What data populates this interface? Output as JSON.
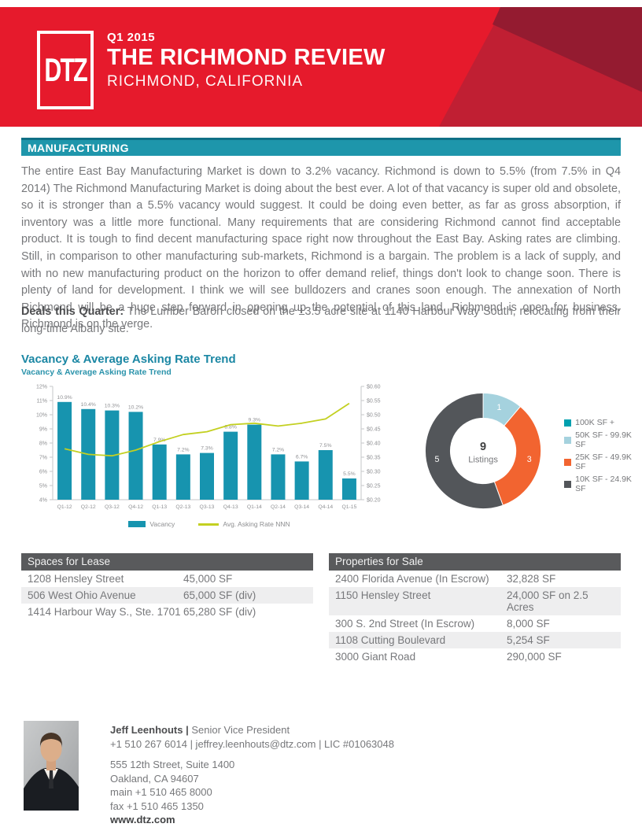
{
  "header": {
    "logo_text": "DTZ",
    "quarter": "Q1 2015",
    "title": "THE RICHMOND REVIEW",
    "subtitle": "RICHMOND, CALIFORNIA",
    "colors": {
      "red": "#e61a2c",
      "red_mid": "#c01f33",
      "red_dark": "#941b30"
    }
  },
  "section": {
    "label": "MANUFACTURING",
    "color": "#1e96ab"
  },
  "body": {
    "paragraph": "The entire East Bay Manufacturing Market is down to 3.2% vacancy. Richmond is down to 5.5% (from 7.5% in Q4 2014) The Richmond Manufacturing Market is doing about the best ever. A lot of that vacancy is super old and obsolete, so it is stronger than a 5.5% vacancy would suggest. It could be doing even better, as far as gross absorption, if inventory was a little more functional. Many requirements that are considering Richmond cannot find acceptable product. It is tough to find decent manufacturing space right now throughout the East Bay. Asking rates are climbing. Still, in comparison to other manufacturing sub-markets, Richmond is a bargain. The problem is a lack of supply, and with no new manufacturing product on the horizon to offer demand relief, things don't look to change soon. There is plenty of land for development. I think we will see bulldozers and cranes soon enough. The annexation of North Richmond will be a huge step forward in opening up the potential of this land. Richmond is open for business. Richmond is on the verge.",
    "deals_label": "Deals this Quarter:",
    "deals_text": "The Lumber Baron closed on the ±3.5 acre site at 1140 Harbour Way South, relocating from their long-time Albany site."
  },
  "chart_data": [
    {
      "type": "bar",
      "title": "Vacancy & Average Asking Rate Trend",
      "subtitle": "Vacancy & Average Asking Rate Trend",
      "categories": [
        "Q1-12",
        "Q2-12",
        "Q3-12",
        "Q4-12",
        "Q1-13",
        "Q2-13",
        "Q3-13",
        "Q4-13",
        "Q1-14",
        "Q2-14",
        "Q3-14",
        "Q4-14",
        "Q1-15"
      ],
      "series": [
        {
          "name": "Vacancy",
          "render": "bar",
          "color": "#1794af",
          "unit": "%",
          "values": [
            10.9,
            10.4,
            10.3,
            10.2,
            7.9,
            7.2,
            7.3,
            8.8,
            9.3,
            7.2,
            6.7,
            7.5,
            5.5
          ],
          "labels": [
            "10.9%",
            "10.4%",
            "10.3%",
            "10.2%",
            "7.9%",
            "7.2%",
            "7.3%",
            "8.8%",
            "9.3%",
            "7.2%",
            "6.7%",
            "7.5%",
            "5.5%"
          ]
        },
        {
          "name": "Avg. Asking Rate NNN",
          "render": "line",
          "color": "#c3d021",
          "unit": "$/SF",
          "values": [
            0.38,
            0.36,
            0.355,
            0.375,
            0.405,
            0.43,
            0.44,
            0.465,
            0.47,
            0.46,
            0.47,
            0.485,
            0.54
          ]
        }
      ],
      "y_left": {
        "min": 4,
        "max": 12,
        "step": 1,
        "tick_labels": [
          "12%",
          "11%",
          "10%",
          "9%",
          "8%",
          "7%",
          "6%",
          "5%",
          "4%"
        ]
      },
      "y_right": {
        "min": 0.2,
        "max": 0.6,
        "step": 0.05,
        "tick_labels": [
          "$0.60",
          "$0.55",
          "$0.50",
          "$0.45",
          "$0.40",
          "$0.35",
          "$0.30",
          "$0.25",
          "$0.20"
        ]
      },
      "grid": false,
      "legend_position": "bottom"
    },
    {
      "type": "pie",
      "style": "donut",
      "center_value": "9",
      "center_label": "Listings",
      "slices": [
        {
          "label": "100K SF +",
          "value": 0,
          "color": "#00a0af"
        },
        {
          "label": "50K SF - 99.9K SF",
          "value": 1,
          "color": "#a5d2de"
        },
        {
          "label": "25K SF - 49.9K SF",
          "value": 3,
          "color": "#f26430"
        },
        {
          "label": "10K SF - 24.9K SF",
          "value": 5,
          "color": "#53565a"
        }
      ],
      "legend_position": "right"
    }
  ],
  "tables": {
    "lease": {
      "title": "Spaces for Lease",
      "rows": [
        [
          "1208 Hensley Street",
          "45,000 SF"
        ],
        [
          "506 West Ohio Avenue",
          "65,000 SF (div)"
        ],
        [
          "1414 Harbour Way S., Ste. 1701",
          "65,280 SF (div)"
        ]
      ]
    },
    "sale": {
      "title": "Properties for Sale",
      "rows": [
        [
          "2400 Florida Avenue (In Escrow)",
          "32,828 SF"
        ],
        [
          "1150 Hensley Street",
          "24,000 SF on 2.5 Acres"
        ],
        [
          "300 S. 2nd Street (In Escrow)",
          "8,000 SF"
        ],
        [
          "1108 Cutting Boulevard",
          "5,254 SF"
        ],
        [
          "3000 Giant Road",
          "290,000 SF"
        ]
      ]
    }
  },
  "footer": {
    "name": "Jeff Leenhouts |",
    "role": "Senior Vice President",
    "contact_line": "+1 510 267 6014 | jeffrey.leenhouts@dtz.com | LIC #01063048",
    "address1": "555 12th Street, Suite 1400",
    "address2": "Oakland, CA 94607",
    "main_phone": "main  +1 510 465 8000",
    "fax": "fax  +1 510 465 1350",
    "website": "www.dtz.com"
  }
}
